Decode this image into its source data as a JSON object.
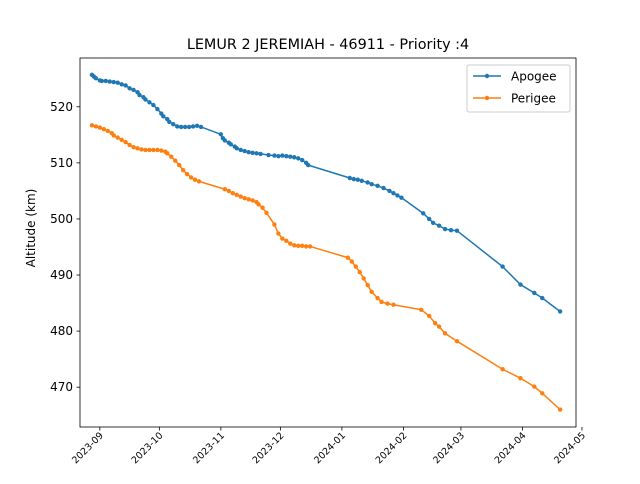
{
  "chart_data": {
    "type": "line",
    "title": "LEMUR 2 JEREMIAH - 46911 - Priority :4",
    "xlabel": "",
    "ylabel": "Altitude (km)",
    "xlim": [
      "2023-08-22",
      "2024-04-28"
    ],
    "ylim": [
      462.9,
      528.7
    ],
    "x_ticks": [
      "2023-09",
      "2023-10",
      "2023-11",
      "2023-12",
      "2024-01",
      "2024-02",
      "2024-03",
      "2024-04",
      "2024-05"
    ],
    "y_ticks": [
      470,
      480,
      490,
      500,
      510,
      520
    ],
    "grid": false,
    "legend_position": "top-right",
    "series": [
      {
        "name": "Apogee",
        "color": "#1f77b4",
        "points": [
          [
            "2023-08-28",
            525.7
          ],
          [
            "2023-08-29",
            525.4
          ],
          [
            "2023-08-30",
            525.1
          ],
          [
            "2023-09-01",
            524.7
          ],
          [
            "2023-09-02",
            524.6
          ],
          [
            "2023-09-04",
            524.6
          ],
          [
            "2023-09-06",
            524.5
          ],
          [
            "2023-09-08",
            524.4
          ],
          [
            "2023-09-10",
            524.3
          ],
          [
            "2023-09-12",
            524.0
          ],
          [
            "2023-09-14",
            523.8
          ],
          [
            "2023-09-16",
            523.3
          ],
          [
            "2023-09-18",
            523.0
          ],
          [
            "2023-09-20",
            522.6
          ],
          [
            "2023-09-21",
            522.1
          ],
          [
            "2023-09-23",
            521.7
          ],
          [
            "2023-09-24",
            521.3
          ],
          [
            "2023-09-26",
            520.8
          ],
          [
            "2023-09-28",
            520.3
          ],
          [
            "2023-09-30",
            519.6
          ],
          [
            "2023-10-02",
            518.8
          ],
          [
            "2023-10-03",
            518.3
          ],
          [
            "2023-10-05",
            517.8
          ],
          [
            "2023-10-06",
            517.3
          ],
          [
            "2023-10-08",
            516.9
          ],
          [
            "2023-10-10",
            516.5
          ],
          [
            "2023-10-12",
            516.4
          ],
          [
            "2023-10-14",
            516.4
          ],
          [
            "2023-10-16",
            516.4
          ],
          [
            "2023-10-18",
            516.5
          ],
          [
            "2023-10-20",
            516.6
          ],
          [
            "2023-10-22",
            516.4
          ],
          [
            "2023-11-01",
            515.1
          ],
          [
            "2023-11-02",
            514.4
          ],
          [
            "2023-11-03",
            514.0
          ],
          [
            "2023-11-05",
            513.6
          ],
          [
            "2023-11-06",
            513.3
          ],
          [
            "2023-11-08",
            512.9
          ],
          [
            "2023-11-09",
            512.6
          ],
          [
            "2023-11-11",
            512.3
          ],
          [
            "2023-11-13",
            512.1
          ],
          [
            "2023-11-15",
            511.9
          ],
          [
            "2023-11-17",
            511.8
          ],
          [
            "2023-11-19",
            511.7
          ],
          [
            "2023-11-21",
            511.6
          ],
          [
            "2023-11-25",
            511.4
          ],
          [
            "2023-11-28",
            511.3
          ],
          [
            "2023-11-30",
            511.2
          ],
          [
            "2023-12-02",
            511.3
          ],
          [
            "2023-12-04",
            511.2
          ],
          [
            "2023-12-06",
            511.1
          ],
          [
            "2023-12-08",
            511.0
          ],
          [
            "2023-12-10",
            510.8
          ],
          [
            "2023-12-12",
            510.5
          ],
          [
            "2023-12-14",
            510.0
          ],
          [
            "2023-12-15",
            509.6
          ],
          [
            "2024-01-05",
            507.3
          ],
          [
            "2024-01-07",
            507.1
          ],
          [
            "2024-01-09",
            507.0
          ],
          [
            "2024-01-11",
            506.8
          ],
          [
            "2024-01-14",
            506.5
          ],
          [
            "2024-01-16",
            506.2
          ],
          [
            "2024-01-19",
            505.9
          ],
          [
            "2024-01-22",
            505.5
          ],
          [
            "2024-01-25",
            505.0
          ],
          [
            "2024-01-27",
            504.6
          ],
          [
            "2024-01-29",
            504.2
          ],
          [
            "2024-01-31",
            503.8
          ],
          [
            "2024-02-11",
            501.0
          ],
          [
            "2024-02-14",
            500.0
          ],
          [
            "2024-02-16",
            499.3
          ],
          [
            "2024-02-19",
            498.8
          ],
          [
            "2024-02-22",
            498.2
          ],
          [
            "2024-02-25",
            498.0
          ],
          [
            "2024-02-28",
            497.9
          ],
          [
            "2024-03-22",
            491.5
          ],
          [
            "2024-03-31",
            488.3
          ],
          [
            "2024-04-07",
            486.8
          ],
          [
            "2024-04-11",
            485.9
          ],
          [
            "2024-04-20",
            483.5
          ]
        ]
      },
      {
        "name": "Perigee",
        "color": "#ff7f0e",
        "points": [
          [
            "2023-08-28",
            516.7
          ],
          [
            "2023-08-30",
            516.5
          ],
          [
            "2023-09-01",
            516.3
          ],
          [
            "2023-09-03",
            516.0
          ],
          [
            "2023-09-05",
            515.7
          ],
          [
            "2023-09-07",
            515.3
          ],
          [
            "2023-09-08",
            514.9
          ],
          [
            "2023-09-10",
            514.5
          ],
          [
            "2023-09-12",
            514.1
          ],
          [
            "2023-09-14",
            513.7
          ],
          [
            "2023-09-16",
            513.2
          ],
          [
            "2023-09-18",
            512.8
          ],
          [
            "2023-09-20",
            512.6
          ],
          [
            "2023-09-22",
            512.4
          ],
          [
            "2023-09-24",
            512.3
          ],
          [
            "2023-09-26",
            512.3
          ],
          [
            "2023-09-28",
            512.3
          ],
          [
            "2023-09-30",
            512.3
          ],
          [
            "2023-10-02",
            512.2
          ],
          [
            "2023-10-04",
            512.0
          ],
          [
            "2023-10-05",
            511.7
          ],
          [
            "2023-10-07",
            511.1
          ],
          [
            "2023-10-09",
            510.4
          ],
          [
            "2023-10-11",
            509.6
          ],
          [
            "2023-10-13",
            508.7
          ],
          [
            "2023-10-15",
            508.0
          ],
          [
            "2023-10-17",
            507.4
          ],
          [
            "2023-10-19",
            507.0
          ],
          [
            "2023-10-21",
            506.7
          ],
          [
            "2023-11-03",
            505.3
          ],
          [
            "2023-11-05",
            505.0
          ],
          [
            "2023-11-07",
            504.6
          ],
          [
            "2023-11-09",
            504.3
          ],
          [
            "2023-11-11",
            504.0
          ],
          [
            "2023-11-13",
            503.7
          ],
          [
            "2023-11-15",
            503.5
          ],
          [
            "2023-11-17",
            503.3
          ],
          [
            "2023-11-19",
            503.0
          ],
          [
            "2023-11-20",
            502.6
          ],
          [
            "2023-11-22",
            502.0
          ],
          [
            "2023-11-24",
            501.1
          ],
          [
            "2023-11-28",
            499.0
          ],
          [
            "2023-11-30",
            497.4
          ],
          [
            "2023-12-02",
            496.5
          ],
          [
            "2023-12-04",
            496.1
          ],
          [
            "2023-12-06",
            495.6
          ],
          [
            "2023-12-08",
            495.3
          ],
          [
            "2023-12-10",
            495.2
          ],
          [
            "2023-12-12",
            495.2
          ],
          [
            "2023-12-14",
            495.1
          ],
          [
            "2023-12-16",
            495.1
          ],
          [
            "2024-01-04",
            493.1
          ],
          [
            "2024-01-06",
            492.4
          ],
          [
            "2024-01-08",
            491.5
          ],
          [
            "2024-01-10",
            490.5
          ],
          [
            "2024-01-12",
            489.4
          ],
          [
            "2024-01-14",
            488.2
          ],
          [
            "2024-01-16",
            487.0
          ],
          [
            "2024-01-19",
            485.9
          ],
          [
            "2024-01-21",
            485.2
          ],
          [
            "2024-01-24",
            484.9
          ],
          [
            "2024-01-27",
            484.7
          ],
          [
            "2024-02-10",
            483.8
          ],
          [
            "2024-02-14",
            482.7
          ],
          [
            "2024-02-17",
            481.4
          ],
          [
            "2024-02-19",
            480.8
          ],
          [
            "2024-02-22",
            479.6
          ],
          [
            "2024-02-28",
            478.2
          ],
          [
            "2024-03-22",
            473.2
          ],
          [
            "2024-03-31",
            471.6
          ],
          [
            "2024-04-07",
            470.1
          ],
          [
            "2024-04-11",
            468.9
          ],
          [
            "2024-04-20",
            466.0
          ]
        ]
      }
    ]
  }
}
